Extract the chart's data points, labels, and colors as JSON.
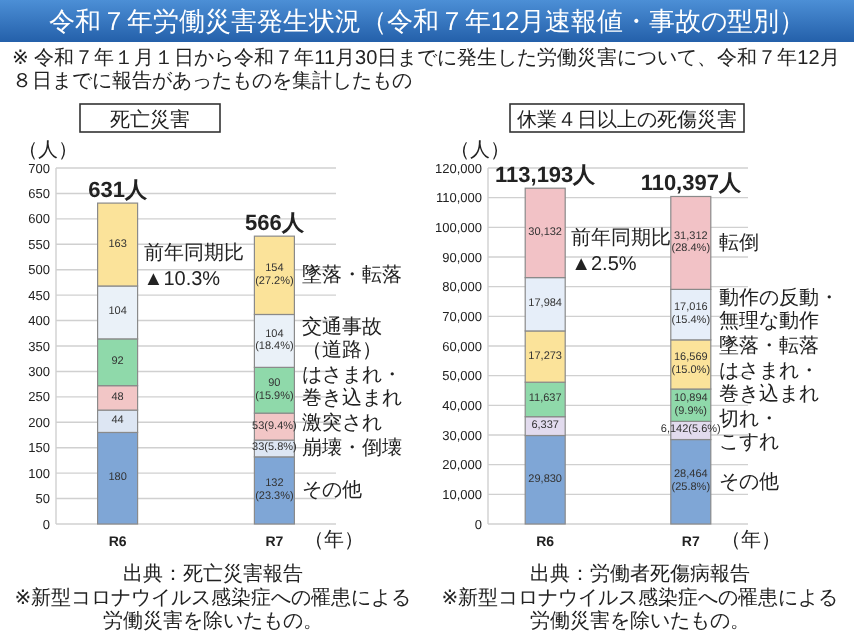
{
  "chart_data": [
    {
      "type": "bar",
      "stacked": true,
      "title": "死亡災害",
      "ylabel": "（人）",
      "xlabel": "（年）",
      "categories": [
        "R6",
        "R7"
      ],
      "ylim": [
        0,
        700
      ],
      "yticks": [
        0,
        50,
        100,
        150,
        200,
        250,
        300,
        350,
        400,
        450,
        500,
        550,
        600,
        650,
        700
      ],
      "grid": "y",
      "totals": [
        "631人",
        "566人"
      ],
      "series": [
        {
          "name": "その他",
          "color": "#7fa6d6",
          "values": [
            180,
            132
          ],
          "value_labels": [
            "180",
            "132\n(23.3%)"
          ]
        },
        {
          "name": "崩壊・倒壊",
          "color": "#dde6f3",
          "values": [
            44,
            33
          ],
          "value_labels": [
            "44",
            "33(5.8%)"
          ]
        },
        {
          "name": "激突され",
          "color": "#f2c6c6",
          "values": [
            48,
            53
          ],
          "value_labels": [
            "48",
            "53(9.4%)"
          ]
        },
        {
          "name": "はさまれ・巻き込まれ",
          "color": "#8fd9aa",
          "values": [
            92,
            90
          ],
          "value_labels": [
            "92",
            "90\n(15.9%)"
          ]
        },
        {
          "name": "交通事故（道路）",
          "color": "#eaf1f8",
          "values": [
            104,
            104
          ],
          "value_labels": [
            "104",
            "104\n(18.4%)"
          ]
        },
        {
          "name": "墜落・転落",
          "color": "#fbe39a",
          "values": [
            163,
            154
          ],
          "value_labels": [
            "163",
            "154\n(27.2%)"
          ]
        }
      ],
      "annotations": [
        "令和７年労働災害発生状況（令和７年12月速報値・事故の型別）",
        "※ 令和７年１月１日から令和７年11月30日までに発生した労働災害について、令和７年12月８日までに報告があったものを集計したもの",
        "前年同期比",
        "▲10.3%",
        "出典：死亡災害報告",
        "※新型コロナウイルス感染症への罹患による労働災害を除いたもの。"
      ]
    },
    {
      "type": "bar",
      "stacked": true,
      "title": "休業４日以上の死傷災害",
      "ylabel": "（人）",
      "xlabel": "（年）",
      "categories": [
        "R6",
        "R7"
      ],
      "ylim": [
        0,
        120000
      ],
      "yticks": [
        {
          "value": 0,
          "label": "0"
        },
        {
          "value": 10000,
          "label": "10,000"
        },
        {
          "value": 20000,
          "label": "20,000"
        },
        {
          "value": 30000,
          "label": "30,000"
        },
        {
          "value": 40000,
          "label": "40,000"
        },
        {
          "value": 50000,
          "label": "50,000"
        },
        {
          "value": 60000,
          "label": "60,000"
        },
        {
          "value": 70000,
          "label": "70,000"
        },
        {
          "value": 80000,
          "label": "80,000"
        },
        {
          "value": 90000,
          "label": "90,000"
        },
        {
          "value": 100000,
          "label": "100,000"
        },
        {
          "value": 110000,
          "label": "110,000"
        },
        {
          "value": 120000,
          "label": "120,000"
        }
      ],
      "grid": "y",
      "totals": [
        "113,193人",
        "110,397人"
      ],
      "series": [
        {
          "name": "その他",
          "color": "#7fa6d6",
          "values": [
            29830,
            28464
          ],
          "value_labels": [
            "29,830",
            "28,464\n(25.8%)"
          ]
        },
        {
          "name": "切れ・こすれ",
          "color": "#e2dbee",
          "values": [
            6337,
            6142
          ],
          "value_labels": [
            "6,337",
            "6,142(5.6%)"
          ]
        },
        {
          "name": "はさまれ・巻き込まれ",
          "color": "#8fd9aa",
          "values": [
            11637,
            10894
          ],
          "value_labels": [
            "11,637",
            "10,894\n(9.9%)"
          ]
        },
        {
          "name": "墜落・転落",
          "color": "#fbe39a",
          "values": [
            17273,
            16569
          ],
          "value_labels": [
            "17,273",
            "16,569\n(15.0%)"
          ]
        },
        {
          "name": "動作の反動・無理な動作",
          "color": "#e6eef9",
          "values": [
            17984,
            17016
          ],
          "value_labels": [
            "17,984",
            "17,016\n(15.4%)"
          ]
        },
        {
          "name": "転倒",
          "color": "#f2c2c6",
          "values": [
            30132,
            31312
          ],
          "value_labels": [
            "30,132",
            "31,312\n(28.4%)"
          ]
        }
      ],
      "annotations": [
        "前年同期比",
        "▲2.5%",
        "出典：労働者死傷病報告",
        "※新型コロナウイルス感染症への罹患による労働災害を除いたもの。"
      ]
    }
  ]
}
